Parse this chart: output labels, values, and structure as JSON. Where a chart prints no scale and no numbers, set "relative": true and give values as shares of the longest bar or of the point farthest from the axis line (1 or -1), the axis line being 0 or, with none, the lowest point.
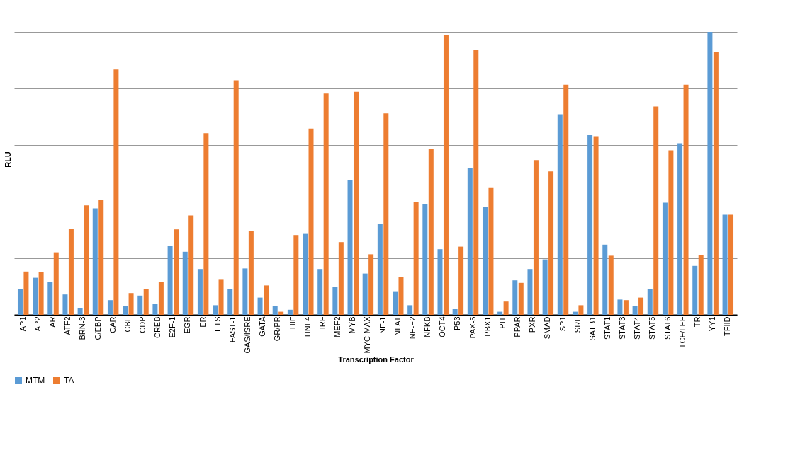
{
  "chart_data": {
    "type": "bar",
    "relative": true,
    "xlabel": "Transcription Factor",
    "ylabel": "RLU",
    "grid": "y",
    "legend": "bottom",
    "categories": [
      "AP1",
      "AP2",
      "AR",
      "ATF2",
      "BRN-3",
      "C/EBP",
      "CAR",
      "CBF",
      "CDP",
      "CREB",
      "E2F-1",
      "EGR",
      "ER",
      "ETS",
      "FAST-1",
      "GAS/ISRE",
      "GATA",
      "GR/PR",
      "HIF",
      "HNF4",
      "IRF",
      "MEF2",
      "MYB",
      "MYC-MAX",
      "NF-1",
      "NFAT",
      "NF-E2",
      "NFKB",
      "OCT4",
      "P53",
      "PAX-5",
      "PBX1",
      "PIT",
      "PPAR",
      "PXR",
      "SMAD",
      "SP1",
      "SRE",
      "SATB1",
      "STAT1",
      "STAT3",
      "STAT4",
      "STAT5",
      "STAT6",
      "TCF/LEF",
      "TR",
      "YY1",
      "TFIID"
    ],
    "series": [
      {
        "name": "MTM",
        "color": "#5b9bd5",
        "values": [
          0.09,
          0.131,
          0.115,
          0.072,
          0.023,
          0.376,
          0.052,
          0.032,
          0.068,
          0.038,
          0.243,
          0.223,
          0.162,
          0.034,
          0.092,
          0.164,
          0.061,
          0.032,
          0.018,
          0.286,
          0.162,
          0.099,
          0.475,
          0.146,
          0.322,
          0.081,
          0.034,
          0.392,
          0.232,
          0.02,
          0.518,
          0.381,
          0.011,
          0.122,
          0.162,
          0.196,
          0.709,
          0.011,
          0.635,
          0.248,
          0.054,
          0.032,
          0.092,
          0.396,
          0.606,
          0.173,
          1,
          0.354
        ]
      },
      {
        "name": "TA",
        "color": "#ed7d31",
        "values": [
          0.153,
          0.151,
          0.221,
          0.304,
          0.387,
          0.405,
          0.867,
          0.077,
          0.092,
          0.115,
          0.302,
          0.351,
          0.642,
          0.124,
          0.829,
          0.295,
          0.104,
          0.011,
          0.282,
          0.658,
          0.782,
          0.257,
          0.788,
          0.214,
          0.712,
          0.133,
          0.399,
          0.586,
          0.989,
          0.241,
          0.935,
          0.448,
          0.047,
          0.113,
          0.547,
          0.507,
          0.813,
          0.034,
          0.631,
          0.209,
          0.052,
          0.061,
          0.736,
          0.581,
          0.813,
          0.212,
          0.93,
          0.354
        ]
      }
    ]
  }
}
